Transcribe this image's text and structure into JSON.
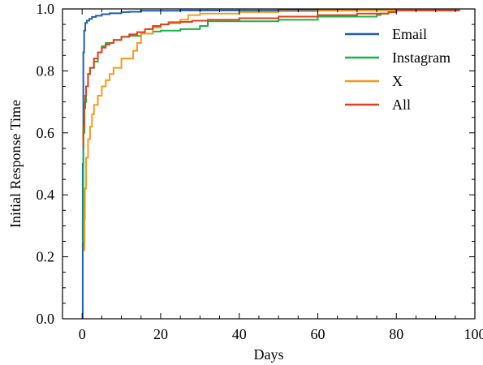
{
  "chart_data": {
    "type": "line",
    "xlabel": "Days",
    "ylabel": "Initial Response Time",
    "xlim": [
      -5,
      100
    ],
    "ylim": [
      0,
      1.0
    ],
    "x_ticks": [
      0,
      20,
      40,
      60,
      80,
      100
    ],
    "y_ticks": [
      0.0,
      0.2,
      0.4,
      0.6,
      0.8,
      1.0
    ],
    "x_tick_labels": [
      "0",
      "20",
      "40",
      "60",
      "80",
      "100"
    ],
    "y_tick_labels": [
      "0.0",
      "0.2",
      "0.4",
      "0.6",
      "0.8",
      "1.0"
    ],
    "grid": false,
    "legend_position": "top-right",
    "series": [
      {
        "name": "Email",
        "color": "#1f5fa8",
        "x": [
          0,
          0.15,
          0.3,
          0.5,
          0.8,
          1.2,
          1.8,
          2.5,
          3.5,
          5,
          7,
          10,
          12,
          15,
          25,
          50,
          80,
          96
        ],
        "y": [
          0.0,
          0.5,
          0.86,
          0.93,
          0.955,
          0.962,
          0.968,
          0.974,
          0.978,
          0.983,
          0.986,
          0.99,
          0.991,
          0.994,
          0.995,
          0.996,
          0.997,
          0.998
        ]
      },
      {
        "name": "Instagram",
        "color": "#19b548",
        "x": [
          0,
          0.3,
          0.6,
          1,
          1.5,
          2,
          3,
          4,
          5,
          6,
          8,
          10,
          12,
          15,
          18,
          20,
          25,
          30,
          32,
          40,
          50,
          58,
          60,
          70,
          75,
          76,
          78,
          80,
          90,
          96
        ],
        "y": [
          0.25,
          0.6,
          0.7,
          0.75,
          0.79,
          0.81,
          0.83,
          0.86,
          0.88,
          0.89,
          0.9,
          0.91,
          0.913,
          0.92,
          0.927,
          0.93,
          0.935,
          0.945,
          0.96,
          0.96,
          0.965,
          0.965,
          0.975,
          0.975,
          0.98,
          0.985,
          0.99,
          0.995,
          0.995,
          0.995
        ]
      },
      {
        "name": "X",
        "color": "#f59a1b",
        "x": [
          0.5,
          0.6,
          0.7,
          1,
          1.5,
          2,
          2.5,
          3,
          4,
          5,
          6,
          7,
          8,
          10,
          12,
          13,
          14,
          15,
          18,
          20,
          22,
          25,
          27,
          30,
          40,
          50,
          60,
          70,
          80,
          96
        ],
        "y": [
          0.22,
          0.32,
          0.42,
          0.52,
          0.58,
          0.62,
          0.66,
          0.69,
          0.72,
          0.75,
          0.77,
          0.79,
          0.81,
          0.84,
          0.84,
          0.865,
          0.89,
          0.92,
          0.94,
          0.95,
          0.958,
          0.965,
          0.98,
          0.985,
          0.99,
          0.992,
          0.994,
          0.995,
          0.996,
          0.998
        ]
      },
      {
        "name": "All",
        "color": "#e2401c",
        "x": [
          0.2,
          0.3,
          0.5,
          0.8,
          1,
          1.5,
          2,
          3,
          4,
          5,
          6,
          7,
          8,
          10,
          12,
          14,
          16,
          18,
          20,
          22,
          25,
          28,
          32,
          40,
          50,
          60,
          70,
          78,
          80,
          96
        ],
        "y": [
          0.55,
          0.62,
          0.68,
          0.72,
          0.75,
          0.79,
          0.81,
          0.84,
          0.86,
          0.875,
          0.885,
          0.89,
          0.9,
          0.91,
          0.918,
          0.925,
          0.935,
          0.945,
          0.95,
          0.955,
          0.958,
          0.962,
          0.965,
          0.97,
          0.975,
          0.98,
          0.985,
          0.99,
          0.995,
          0.998
        ]
      }
    ]
  }
}
